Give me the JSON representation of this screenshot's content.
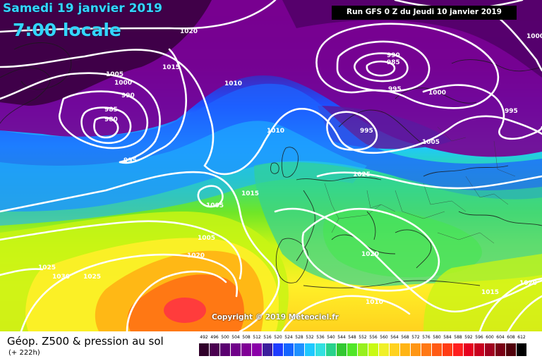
{
  "header": {
    "date": "Samedi 19 janvier 2019",
    "time": "7:00 locale",
    "run": "Run GFS 0 Z du Jeudi 10 janvier 2019"
  },
  "copyright": "Copyright © 2019 Meteociel.fr",
  "footer": {
    "title": "Géop. Z500 & pression au sol",
    "lead_time": "(+ 222h)"
  },
  "legend": {
    "labels": [
      "492",
      "496",
      "500",
      "504",
      "508",
      "512",
      "516",
      "520",
      "524",
      "528",
      "532",
      "536",
      "540",
      "544",
      "548",
      "552",
      "556",
      "560",
      "564",
      "568",
      "572",
      "576",
      "580",
      "584",
      "588",
      "592",
      "596",
      "600",
      "604",
      "608",
      "612"
    ],
    "colors": [
      "#30002a",
      "#4a0050",
      "#5a0070",
      "#70008a",
      "#800096",
      "#8a00a8",
      "#3c1e9c",
      "#1e3cff",
      "#1464ff",
      "#1e90ff",
      "#1ec8ff",
      "#32e0e0",
      "#28d28c",
      "#32c832",
      "#50e628",
      "#96f01e",
      "#c8fa14",
      "#f0f028",
      "#ffd21e",
      "#ffb414",
      "#ff9614",
      "#ff7814",
      "#ff5a14",
      "#ff3c14",
      "#ff1e1e",
      "#e6001e",
      "#c8001e",
      "#a0001e",
      "#780014",
      "#50000a",
      "#000000"
    ]
  },
  "isobars": [
    "1020",
    "1015",
    "1010",
    "1005",
    "1000",
    "990",
    "985",
    "980",
    "995",
    "990",
    "985",
    "995",
    "1000",
    "1000",
    "995",
    "1005",
    "1010",
    "995",
    "1005",
    "1015",
    "1005",
    "1020",
    "1025",
    "1030",
    "1025",
    "1020",
    "1010",
    "1015",
    "1020",
    "1025"
  ]
}
